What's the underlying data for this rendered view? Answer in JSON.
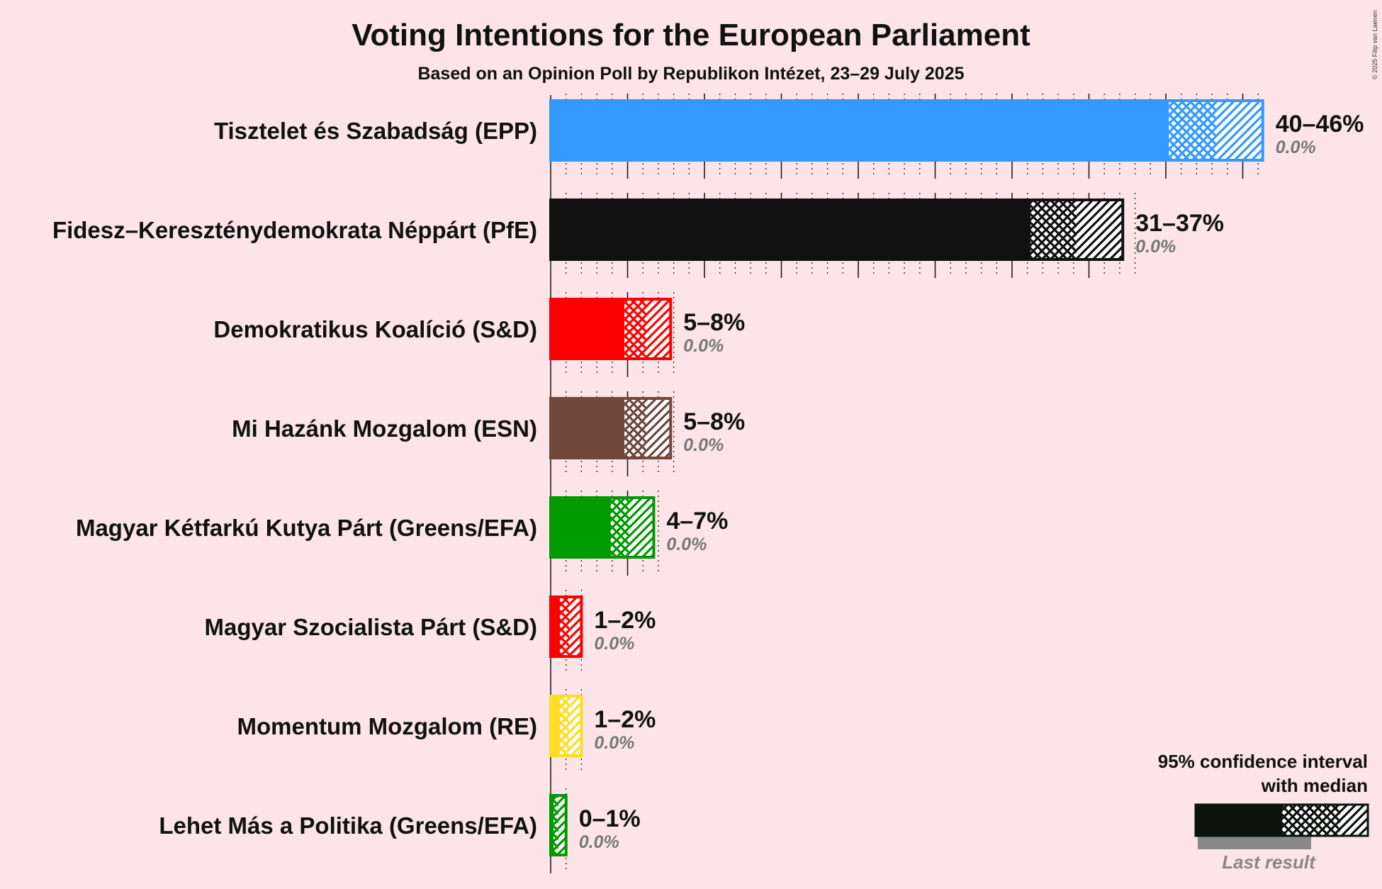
{
  "chart_data": {
    "type": "bar",
    "orientation": "horizontal",
    "title": "Voting Intentions for the European Parliament",
    "subtitle": "Based on an Opinion Poll by Republikon Intézet, 23–29 July 2025",
    "copyright": "© 2025 Filip van Laenen",
    "xlim": [
      0,
      50
    ],
    "grid": true,
    "series_names": [
      "95% CI low",
      "median",
      "95% CI high",
      "last result"
    ],
    "parties": [
      {
        "name": "Tisztelet és Szabadság (EPP)",
        "color": "#3399ff",
        "low": 40.2,
        "median": 43.3,
        "high": 46.3,
        "range": "40–46%",
        "last": "0.0%"
      },
      {
        "name": "Fidesz–Kereszténydemokrata Néppárt (PfE)",
        "color": "#111111",
        "low": 31.2,
        "median": 34.2,
        "high": 37.2,
        "range": "31–37%",
        "last": "0.0%"
      },
      {
        "name": "Demokratikus Koalíció (S&D)",
        "color": "#ff0000",
        "low": 4.8,
        "median": 6.2,
        "high": 7.8,
        "range": "5–8%",
        "last": "0.0%"
      },
      {
        "name": "Mi Hazánk Mozgalom (ESN)",
        "color": "#70483c",
        "low": 4.8,
        "median": 6.2,
        "high": 7.8,
        "range": "5–8%",
        "last": "0.0%"
      },
      {
        "name": "Magyar Kétfarkú Kutya Párt (Greens/EFA)",
        "color": "#009900",
        "low": 3.9,
        "median": 5.1,
        "high": 6.7,
        "range": "4–7%",
        "last": "0.0%"
      },
      {
        "name": "Magyar Szocialista Párt (S&D)",
        "color": "#ff0000",
        "low": 0.6,
        "median": 1.2,
        "high": 2.0,
        "range": "1–2%",
        "last": "0.0%"
      },
      {
        "name": "Momentum Mozgalom (RE)",
        "color": "#ffdd22",
        "low": 0.6,
        "median": 1.2,
        "high": 2.0,
        "range": "1–2%",
        "last": "0.0%"
      },
      {
        "name": "Lehet Más a Politika (Greens/EFA)",
        "color": "#009900",
        "low": 0.2,
        "median": 0.5,
        "high": 1.0,
        "range": "0–1%",
        "last": "0.0%"
      }
    ],
    "legend": {
      "line1": "95% confidence interval",
      "line2": "with median",
      "last_result": "Last result",
      "position": "bottom-right"
    }
  }
}
